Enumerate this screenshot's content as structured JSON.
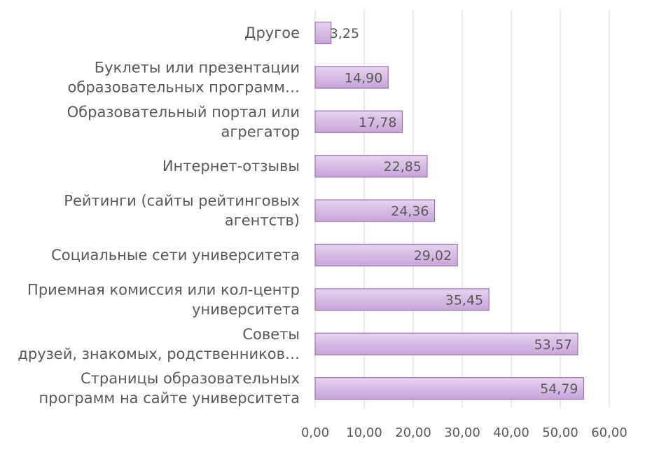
{
  "chart_data": {
    "type": "bar",
    "orientation": "horizontal",
    "categories": [
      [
        "Другое"
      ],
      [
        "Буклеты или презентации",
        "образовательных программ…"
      ],
      [
        "Образовательный портал или",
        "агрегатор"
      ],
      [
        "Интернет-отзывы"
      ],
      [
        "Рейтинги (сайты рейтинговых",
        "агентств)"
      ],
      [
        "Социальные сети университета"
      ],
      [
        "Приемная комиссия или кол-центр",
        "университета"
      ],
      [
        "Советы",
        "друзей, знакомых, родственников…"
      ],
      [
        "Страницы образовательных",
        "программ на сайте университета"
      ]
    ],
    "values": [
      3.25,
      14.9,
      17.78,
      22.85,
      24.36,
      29.02,
      35.45,
      53.57,
      54.79
    ],
    "value_labels": [
      "3,25",
      "14,90",
      "17,78",
      "22,85",
      "24,36",
      "29,02",
      "35,45",
      "53,57",
      "54,79"
    ],
    "xlim": [
      0,
      60
    ],
    "x_ticks": [
      0,
      10,
      20,
      30,
      40,
      50,
      60
    ],
    "x_tick_labels": [
      "0,00",
      "10,00",
      "20,00",
      "30,00",
      "40,00",
      "50,00",
      "60,00"
    ],
    "grid": "vertical",
    "legend": "none",
    "colors": {
      "bar_fill_top": "#e6d5ef",
      "bar_fill_bottom": "#c6a4d8",
      "bar_stroke": "#9b72b0",
      "grid": "#d9d9d9",
      "text": "#595959"
    }
  }
}
